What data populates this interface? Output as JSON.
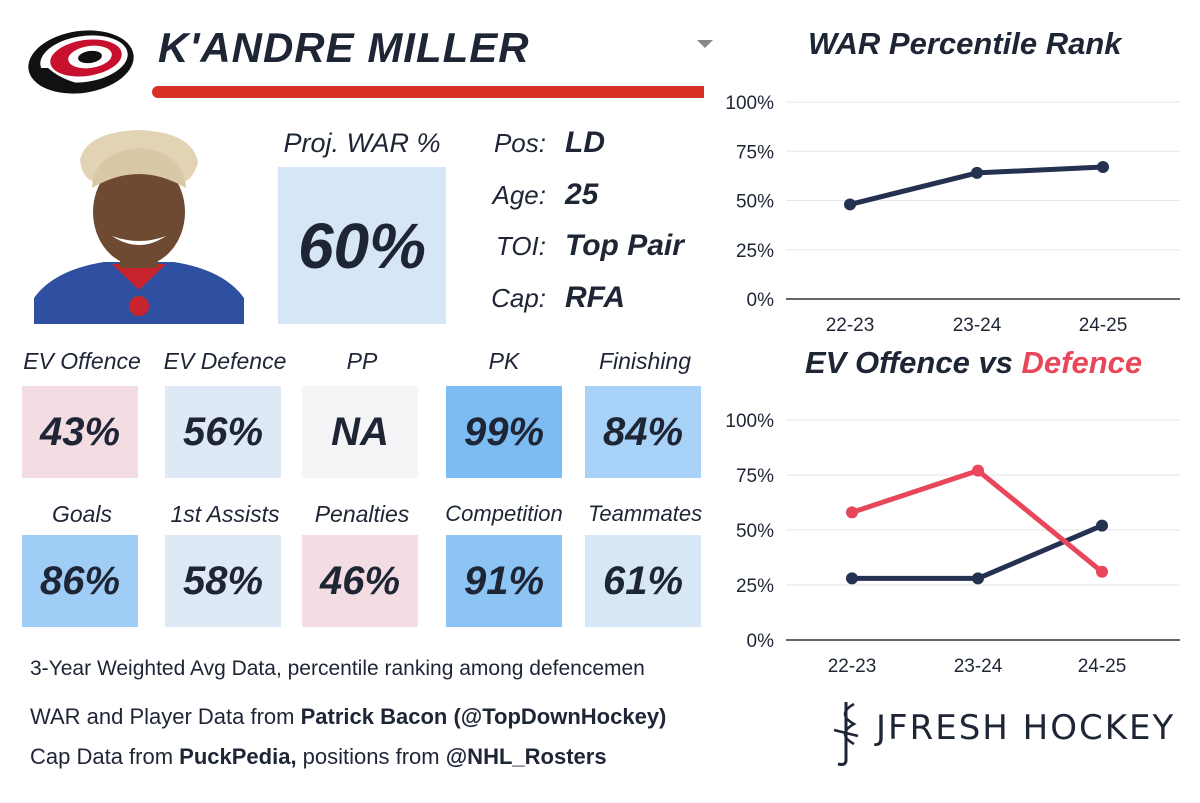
{
  "header": {
    "player_name": "K'ANDRE MILLER"
  },
  "colors": {
    "navy": "#243150",
    "red": "#e8465a",
    "brand_red": "#d83026",
    "tile_red": "#f3dde3",
    "tile_light": "#dfe9f5",
    "tile_blue": "#7cbcf3",
    "tile_mid_blue": "#a8d2f7",
    "tile_grey": "#f5f5f7"
  },
  "icons": {
    "team_logo": "hurricanes-logo-icon",
    "dropdown": "chevron-down-icon",
    "brand": "jfresh-hockey-logo-icon"
  },
  "projection": {
    "label": "Proj. WAR %",
    "value": "60%"
  },
  "info": [
    {
      "label": "Pos:",
      "value": "LD"
    },
    {
      "label": "Age:",
      "value": "25"
    },
    {
      "label": "TOI:",
      "value": "Top Pair"
    },
    {
      "label": "Cap:",
      "value": "RFA"
    }
  ],
  "tiles": [
    {
      "label": "EV Offence",
      "value": "43%",
      "color": "#f3dde3"
    },
    {
      "label": "EV Defence",
      "value": "56%",
      "color": "#dfe9f5"
    },
    {
      "label": "PP",
      "value": "NA",
      "color": "#f5f5f7"
    },
    {
      "label": "PK",
      "value": "99%",
      "color": "#7cbcf3"
    },
    {
      "label": "Finishing",
      "value": "84%",
      "color": "#a8d2f7"
    },
    {
      "label": "Goals",
      "value": "86%",
      "color": "#a0cdf6"
    },
    {
      "label": "1st Assists",
      "value": "58%",
      "color": "#dfe9f5"
    },
    {
      "label": "Penalties",
      "value": "46%",
      "color": "#f3dde3"
    },
    {
      "label": "Competition",
      "value": "91%",
      "color": "#8cc4f4"
    },
    {
      "label": "Teammates",
      "value": "61%",
      "color": "#d8e7f6"
    }
  ],
  "notes": {
    "line1": "3-Year Weighted Avg Data, percentile ranking among defencemen",
    "line2_prefix": "WAR and Player Data from ",
    "line2_bold": "Patrick Bacon (@TopDownHockey)",
    "line3_prefix": "Cap Data from ",
    "line3_bold1": "PuckPedia,",
    "line3_mid": " positions from ",
    "line3_bold2": "@NHL_Rosters"
  },
  "brand": {
    "name": "JFRESH HOCKEY"
  },
  "chart_data": [
    {
      "type": "line",
      "title": "WAR Percentile Rank",
      "categories": [
        "22-23",
        "23-24",
        "24-25"
      ],
      "series": [
        {
          "values": [
            48,
            64,
            67
          ],
          "color": "#243150"
        }
      ],
      "ylim": [
        0,
        100
      ],
      "yticks": [
        "0%",
        "25%",
        "50%",
        "75%",
        "100%"
      ],
      "grid": true
    },
    {
      "type": "line",
      "title_part1": "EV Offence",
      "title_part2": " vs ",
      "title_part3": "Defence",
      "categories": [
        "22-23",
        "23-24",
        "24-25"
      ],
      "series": [
        {
          "values": [
            28,
            28,
            52
          ],
          "color": "#243150"
        },
        {
          "values": [
            58,
            77,
            31
          ],
          "color": "#e8465a"
        }
      ],
      "ylim": [
        0,
        100
      ],
      "yticks": [
        "0%",
        "25%",
        "50%",
        "75%",
        "100%"
      ],
      "grid": true
    }
  ]
}
